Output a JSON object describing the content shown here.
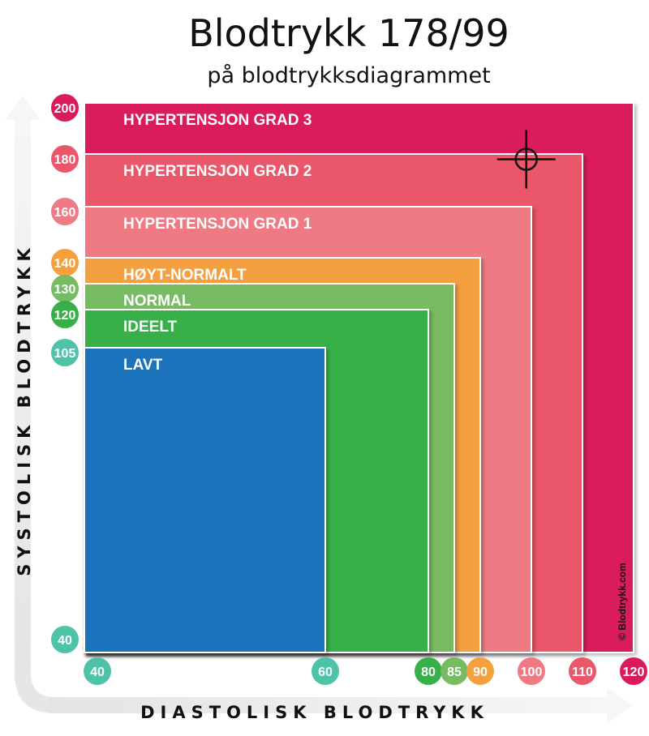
{
  "header": {
    "title": "Blodtrykk 178/99",
    "subtitle": "på blodtrykksdiagrammet"
  },
  "chart_data": {
    "type": "heatmap",
    "xlabel": "DIASTOLISK BLODTRYKK",
    "ylabel": "SYSTOLISK BLODTRYKK",
    "xlim": [
      40,
      120
    ],
    "ylim": [
      40,
      200
    ],
    "zones": [
      {
        "name": "HYPERTENSJON GRAD 3",
        "x_max": 120,
        "y_max": 200,
        "color": "#db1a5a"
      },
      {
        "name": "HYPERTENSJON GRAD 2",
        "x_max": 110,
        "y_max": 180,
        "color": "#ea576a"
      },
      {
        "name": "HYPERTENSJON GRAD 1",
        "x_max": 100,
        "y_max": 160,
        "color": "#ef7a83"
      },
      {
        "name": "HØYT-NORMALT",
        "x_max": 90,
        "y_max": 140,
        "color": "#f5a03f"
      },
      {
        "name": "NORMAL",
        "x_max": 85,
        "y_max": 130,
        "color": "#77bb63"
      },
      {
        "name": "IDEELT",
        "x_max": 80,
        "y_max": 120,
        "color": "#38b04a"
      },
      {
        "name": "LAVT",
        "x_max": 60,
        "y_max": 105,
        "color": "#1e73bb"
      }
    ],
    "x_ticks": [
      {
        "label": "40",
        "color": "#4fc3a8"
      },
      {
        "label": "60",
        "color": "#4fc3a8"
      },
      {
        "label": "80",
        "color": "#38b04a"
      },
      {
        "label": "85",
        "color": "#77bb63"
      },
      {
        "label": "90",
        "color": "#f5a03f"
      },
      {
        "label": "100",
        "color": "#ef7a83"
      },
      {
        "label": "110",
        "color": "#ea576a"
      },
      {
        "label": "120",
        "color": "#db1a5a"
      }
    ],
    "y_ticks": [
      {
        "label": "200",
        "color": "#db1a5a"
      },
      {
        "label": "180",
        "color": "#ea576a"
      },
      {
        "label": "160",
        "color": "#ef7a83"
      },
      {
        "label": "140",
        "color": "#f5a03f"
      },
      {
        "label": "130",
        "color": "#77bb63"
      },
      {
        "label": "120",
        "color": "#38b04a"
      },
      {
        "label": "105",
        "color": "#4fc3a8"
      },
      {
        "label": "40",
        "color": "#4fc3a8"
      }
    ],
    "marker": {
      "diastolic": 99,
      "systolic": 178
    },
    "copyright": "© Blodtrykk.com"
  }
}
